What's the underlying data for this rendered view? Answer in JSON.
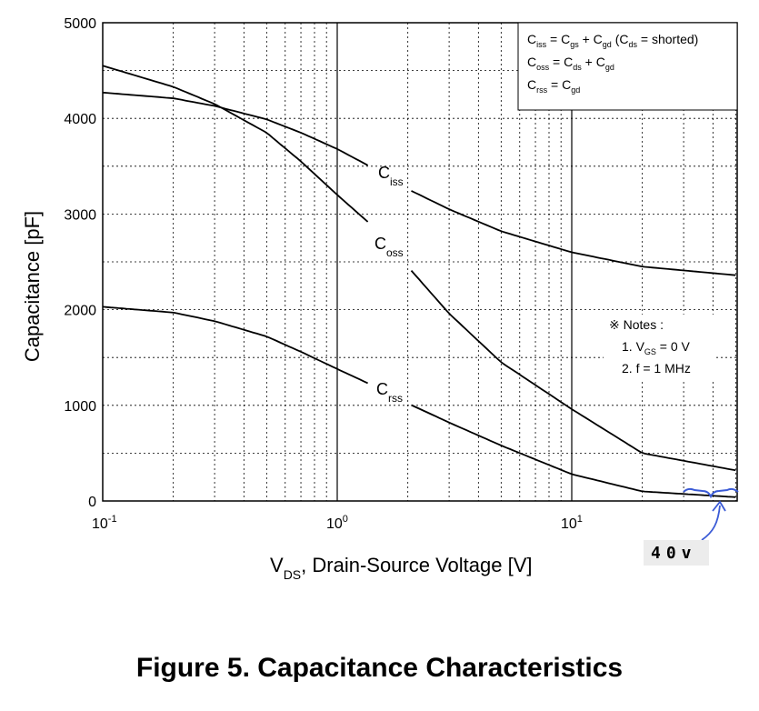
{
  "chart_data": {
    "type": "line",
    "x_scale": "log",
    "xlim": [
      0.1,
      50
    ],
    "ylim": [
      0,
      5000
    ],
    "grid": true,
    "xlabel": {
      "main": "V",
      "sub": "DS",
      "rest": ", Drain-Source Voltage [V]"
    },
    "ylabel": "Capacitance [pF]",
    "x_ticks": [
      {
        "base": "10",
        "exp": "-1"
      },
      {
        "base": "10",
        "exp": "0"
      },
      {
        "base": "10",
        "exp": "1"
      }
    ],
    "y_ticks": [
      "0",
      "1000",
      "2000",
      "3000",
      "4000",
      "5000"
    ],
    "series": [
      {
        "name": {
          "main": "C",
          "sub": "iss"
        },
        "points": [
          [
            0.1,
            4270
          ],
          [
            0.2,
            4210
          ],
          [
            0.3,
            4130
          ],
          [
            0.5,
            3990
          ],
          [
            0.7,
            3850
          ],
          [
            1.0,
            3680
          ],
          [
            1.5,
            3450
          ],
          [
            2.0,
            3260
          ],
          [
            3.0,
            3050
          ],
          [
            5.0,
            2820
          ],
          [
            10.0,
            2600
          ],
          [
            20.0,
            2450
          ],
          [
            50.0,
            2360
          ]
        ]
      },
      {
        "name": {
          "main": "C",
          "sub": "oss"
        },
        "points": [
          [
            0.1,
            4550
          ],
          [
            0.2,
            4330
          ],
          [
            0.3,
            4150
          ],
          [
            0.5,
            3850
          ],
          [
            0.7,
            3550
          ],
          [
            1.0,
            3200
          ],
          [
            1.5,
            2820
          ],
          [
            2.0,
            2450
          ],
          [
            3.0,
            1960
          ],
          [
            5.0,
            1450
          ],
          [
            10.0,
            960
          ],
          [
            20.0,
            500
          ],
          [
            50.0,
            320
          ]
        ]
      },
      {
        "name": {
          "main": "C",
          "sub": "rss"
        },
        "points": [
          [
            0.1,
            2030
          ],
          [
            0.2,
            1970
          ],
          [
            0.3,
            1880
          ],
          [
            0.5,
            1720
          ],
          [
            0.7,
            1560
          ],
          [
            1.0,
            1380
          ],
          [
            1.5,
            1180
          ],
          [
            2.0,
            1020
          ],
          [
            3.0,
            820
          ],
          [
            5.0,
            580
          ],
          [
            10.0,
            280
          ],
          [
            20.0,
            100
          ],
          [
            50.0,
            40
          ]
        ]
      }
    ],
    "legend_box": [
      {
        "c1": "C",
        "s1": "iss",
        "eq": " = C",
        "s2": "gs",
        "plus": " + C",
        "s3": "gd",
        "tail": " (C",
        "s4": "ds",
        "end": " = shorted)"
      },
      {
        "c1": "C",
        "s1": "oss",
        "eq": " = C",
        "s2": "ds",
        "plus": " + C",
        "s3": "gd"
      },
      {
        "c1": "C",
        "s1": "rss",
        "eq": " = C",
        "s2": "gd"
      }
    ],
    "notes": {
      "title": "※ Notes :",
      "line1": {
        "pre": "1. V",
        "sub": "GS",
        "post": " = 0 V"
      },
      "line2": "2. f = 1 MHz"
    }
  },
  "annotation": {
    "text": "40v",
    "color": "#3b5bd6"
  },
  "caption": "Figure 5. Capacitance Characteristics"
}
